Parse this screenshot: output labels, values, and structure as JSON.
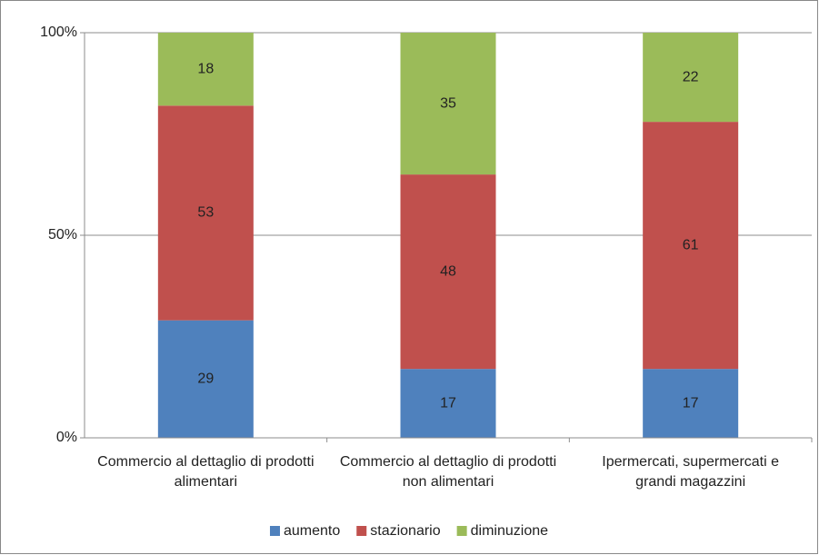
{
  "chart_data": {
    "type": "stacked_bar",
    "categories": [
      "Commercio al dettaglio di prodotti alimentari",
      "Commercio al dettaglio di prodotti non alimentari",
      "Ipermercati, supermercati e grandi magazzini"
    ],
    "series": [
      {
        "name": "aumento",
        "color": "#4f81bd",
        "values": [
          29,
          17,
          17
        ]
      },
      {
        "name": "stazionario",
        "color": "#c0504d",
        "values": [
          53,
          48,
          61
        ]
      },
      {
        "name": "diminuzione",
        "color": "#9bbb59",
        "values": [
          18,
          35,
          22
        ]
      }
    ],
    "ylim": [
      0,
      100
    ],
    "yticks": [
      {
        "value": 0,
        "label": "0%"
      },
      {
        "value": 50,
        "label": "50%"
      },
      {
        "value": 100,
        "label": "100%"
      }
    ],
    "grid": true,
    "legend": "bottom"
  }
}
